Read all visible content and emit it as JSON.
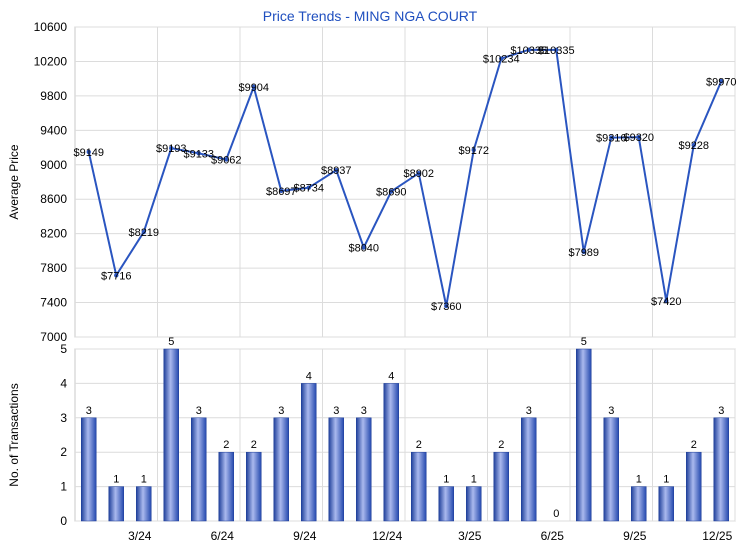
{
  "chart_data": [
    {
      "type": "line",
      "title": "Price Trends - MING NGA COURT",
      "ylabel": "Average Price",
      "ylim": [
        7000,
        10600
      ],
      "yticks": [
        7000,
        7400,
        7800,
        8200,
        8600,
        9000,
        9400,
        9800,
        10200,
        10600
      ],
      "grid": true,
      "color": "#2a55c0",
      "points": [
        {
          "value": 9149,
          "label": "$9149"
        },
        {
          "value": 7716,
          "label": "$7716"
        },
        {
          "value": 8219,
          "label": "$8219"
        },
        {
          "value": 9193,
          "label": "$9193"
        },
        {
          "value": 9133,
          "label": "$9133"
        },
        {
          "value": 9062,
          "label": "$9062"
        },
        {
          "value": 9904,
          "label": "$9904"
        },
        {
          "value": 8697,
          "label": "$8697"
        },
        {
          "value": 8734,
          "label": "$8734"
        },
        {
          "value": 8937,
          "label": "$8937"
        },
        {
          "value": 8040,
          "label": "$8040"
        },
        {
          "value": 8690,
          "label": "$8690"
        },
        {
          "value": 8902,
          "label": "$8902"
        },
        {
          "value": 7360,
          "label": "$7360"
        },
        {
          "value": 9172,
          "label": "$9172"
        },
        {
          "value": 10234,
          "label": "$10234"
        },
        {
          "value": 10335,
          "label": "$10335"
        },
        {
          "value": 10335,
          "label": "$10335"
        },
        {
          "value": 7989,
          "label": "$7989"
        },
        {
          "value": 9316,
          "label": "$9316"
        },
        {
          "value": 9320,
          "label": "$9320"
        },
        {
          "value": 7420,
          "label": "$7420"
        },
        {
          "value": 9228,
          "label": "$9228"
        },
        {
          "value": 9970,
          "label": "$9970"
        }
      ]
    },
    {
      "type": "bar",
      "ylabel": "No. of Transactions",
      "ylim": [
        0,
        5
      ],
      "yticks": [
        0,
        1,
        2,
        3,
        4,
        5
      ],
      "grid": true,
      "color": "#2a55c0",
      "values": [
        3,
        1,
        1,
        5,
        3,
        2,
        2,
        3,
        4,
        3,
        3,
        4,
        2,
        1,
        1,
        2,
        3,
        0,
        5,
        3,
        1,
        1,
        2,
        3
      ],
      "xticks": [
        {
          "index": 2,
          "label": "3/24"
        },
        {
          "index": 5,
          "label": "6/24"
        },
        {
          "index": 8,
          "label": "9/24"
        },
        {
          "index": 11,
          "label": "12/24"
        },
        {
          "index": 14,
          "label": "3/25"
        },
        {
          "index": 17,
          "label": "6/25"
        },
        {
          "index": 20,
          "label": "9/25"
        },
        {
          "index": 23,
          "label": "12/25"
        }
      ]
    }
  ]
}
